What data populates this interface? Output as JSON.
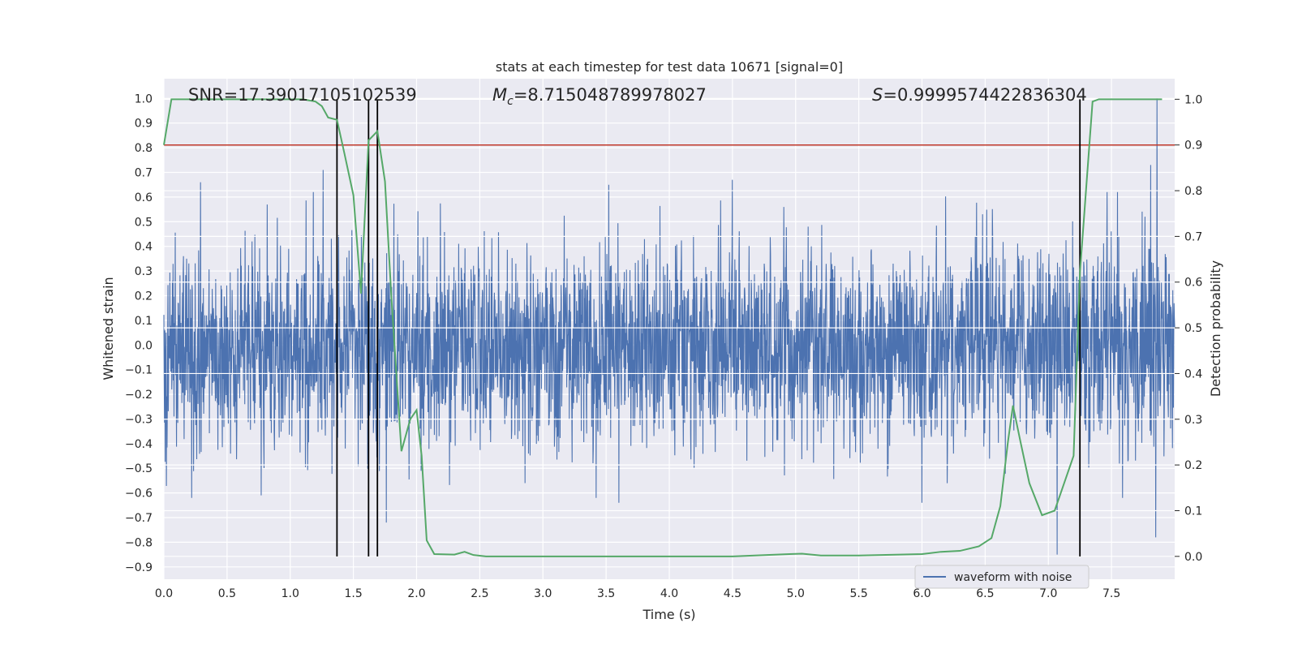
{
  "chart_data": {
    "type": "line",
    "title": "stats at each timestep for test data 10671 [signal=0]",
    "xlabel": "Time (s)",
    "ylabel": "Whitened strain",
    "y2label": "Detection probability",
    "xlim": [
      0,
      8
    ],
    "ylim": [
      -0.95,
      1.08
    ],
    "y2lim": [
      -0.05,
      1.045
    ],
    "xticks": [
      "0.0",
      "0.5",
      "1.0",
      "1.5",
      "2.0",
      "2.5",
      "3.0",
      "3.5",
      "4.0",
      "4.5",
      "5.0",
      "5.5",
      "6.0",
      "6.5",
      "7.0",
      "7.5"
    ],
    "yticks": [
      "1.0",
      "0.9",
      "0.8",
      "0.7",
      "0.6",
      "0.5",
      "0.4",
      "0.3",
      "0.2",
      "0.1",
      "0.0",
      "-0.1",
      "-0.2",
      "-0.3",
      "-0.4",
      "-0.5",
      "-0.6",
      "-0.7",
      "-0.8",
      "-0.9"
    ],
    "y2ticks": [
      "1.0",
      "0.9",
      "0.8",
      "0.7",
      "0.6",
      "0.5",
      "0.4",
      "0.3",
      "0.2",
      "0.1",
      "0.0"
    ],
    "grid": true,
    "legend": {
      "placement": "lower-right",
      "entries": [
        "waveform with noise"
      ]
    },
    "annotations": {
      "snr": {
        "label": "SNR=",
        "value": "17.39017105102539"
      },
      "mc": {
        "label_base": "M",
        "label_sub": "c",
        "value": "=8.715048789978027"
      },
      "s": {
        "label": "S",
        "value": "=0.9999574422836304"
      }
    },
    "threshold": {
      "y2": 0.9,
      "color": "#c0392b"
    },
    "vertical_lines": [
      1.37,
      1.62,
      1.69,
      7.25
    ],
    "series": [
      {
        "name": "waveform with noise",
        "axis": "left",
        "color": "#4c72b0",
        "noise_amplitude": 0.2,
        "seed": 10671,
        "peaks": [
          {
            "x": 1.26,
            "y": 0.71
          },
          {
            "x": 0.29,
            "y": 0.66
          },
          {
            "x": 0.22,
            "y": 0.62
          },
          {
            "x": 3.52,
            "y": 0.65
          },
          {
            "x": 4.5,
            "y": 0.67
          },
          {
            "x": 7.81,
            "y": 0.73
          },
          {
            "x": 7.86,
            "y": 1.0
          },
          {
            "x": 0.22,
            "y": -0.62
          },
          {
            "x": 0.77,
            "y": -0.61
          },
          {
            "x": 1.76,
            "y": -0.72
          },
          {
            "x": 3.6,
            "y": -0.64
          },
          {
            "x": 6.0,
            "y": -0.64
          },
          {
            "x": 7.07,
            "y": -0.85
          },
          {
            "x": 7.85,
            "y": -0.78
          }
        ]
      },
      {
        "name": "",
        "axis": "right",
        "color": "#55a868",
        "x": [
          0.0,
          0.06,
          0.1,
          0.3,
          0.6,
          0.9,
          1.1,
          1.2,
          1.25,
          1.3,
          1.37,
          1.43,
          1.5,
          1.56,
          1.62,
          1.69,
          1.75,
          1.8,
          1.88,
          1.95,
          2.0,
          2.04,
          2.08,
          2.14,
          2.3,
          2.38,
          2.45,
          2.55,
          2.7,
          3.0,
          3.5,
          4.0,
          4.5,
          4.95,
          5.05,
          5.2,
          5.5,
          6.0,
          6.15,
          6.3,
          6.45,
          6.55,
          6.62,
          6.68,
          6.72,
          6.78,
          6.85,
          6.95,
          7.05,
          7.1,
          7.2,
          7.25,
          7.35,
          7.4,
          7.6,
          7.9
        ],
        "y": [
          0.9,
          1.0,
          1.0,
          1.0,
          1.0,
          1.0,
          1.0,
          0.995,
          0.985,
          0.96,
          0.955,
          0.88,
          0.79,
          0.575,
          0.91,
          0.93,
          0.82,
          0.57,
          0.23,
          0.3,
          0.32,
          0.22,
          0.035,
          0.005,
          0.004,
          0.01,
          0.003,
          0.0,
          0.0,
          0.0,
          0.0,
          0.0,
          0.0,
          0.005,
          0.006,
          0.002,
          0.002,
          0.005,
          0.01,
          0.012,
          0.022,
          0.04,
          0.11,
          0.25,
          0.33,
          0.25,
          0.16,
          0.09,
          0.1,
          0.14,
          0.22,
          0.62,
          0.995,
          1.0,
          1.0,
          1.0
        ]
      }
    ]
  }
}
